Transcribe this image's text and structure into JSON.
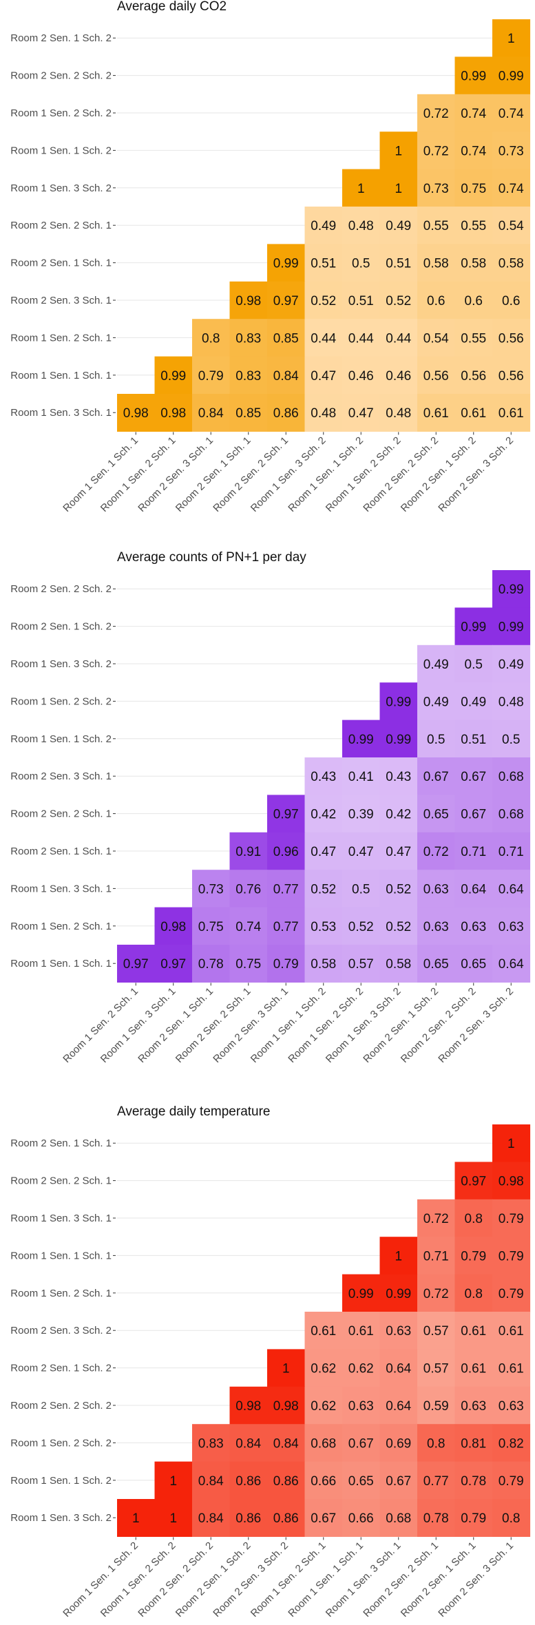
{
  "chart_data": [
    {
      "type": "heatmap",
      "title": "Average daily CO2",
      "color": "#f5a100",
      "color_light": "#ffdcaa",
      "y_labels": [
        "Room 2 Sen. 1 Sch. 2",
        "Room 2 Sen. 2 Sch. 2",
        "Room 1 Sen. 2 Sch. 2",
        "Room 1 Sen. 1 Sch. 2",
        "Room 1 Sen. 3 Sch. 2",
        "Room 2 Sen. 2 Sch. 1",
        "Room 2 Sen. 1 Sch. 1",
        "Room 2 Sen. 3 Sch. 1",
        "Room 1 Sen. 2 Sch. 1",
        "Room 1 Sen. 1 Sch. 1",
        "Room 1 Sen. 3 Sch. 1"
      ],
      "x_labels": [
        "Room 1 Sen. 1 Sch. 1",
        "Room 1 Sen. 2 Sch. 1",
        "Room 2 Sen. 3 Sch. 1",
        "Room 2 Sen. 1 Sch. 1",
        "Room 2 Sen. 2 Sch. 1",
        "Room 1 Sen. 3 Sch. 2",
        "Room 1 Sen. 1 Sch. 2",
        "Room 1 Sen. 2 Sch. 2",
        "Room 2 Sen. 2 Sch. 2",
        "Room 2 Sen. 1 Sch. 2",
        "Room 2 Sen. 3 Sch. 2"
      ],
      "rows": [
        [
          "1"
        ],
        [
          "0.99",
          "0.99"
        ],
        [
          "0.72",
          "0.74",
          "0.74"
        ],
        [
          "1",
          "0.72",
          "0.74",
          "0.73"
        ],
        [
          "1",
          "1",
          "0.73",
          "0.75",
          "0.74"
        ],
        [
          "0.49",
          "0.48",
          "0.49",
          "0.55",
          "0.55",
          "0.54"
        ],
        [
          "0.99",
          "0.51",
          "0.5",
          "0.51",
          "0.58",
          "0.58",
          "0.58"
        ],
        [
          "0.98",
          "0.97",
          "0.52",
          "0.51",
          "0.52",
          "0.6",
          "0.6",
          "0.6"
        ],
        [
          "0.8",
          "0.83",
          "0.85",
          "0.44",
          "0.44",
          "0.44",
          "0.54",
          "0.55",
          "0.56"
        ],
        [
          "0.99",
          "0.79",
          "0.83",
          "0.84",
          "0.47",
          "0.46",
          "0.46",
          "0.56",
          "0.56",
          "0.56"
        ],
        [
          "0.98",
          "0.98",
          "0.84",
          "0.85",
          "0.86",
          "0.48",
          "0.47",
          "0.48",
          "0.61",
          "0.61",
          "0.61"
        ]
      ]
    },
    {
      "type": "heatmap",
      "title": "Average counts of PN+1 per day",
      "color": "#8a2be2",
      "color_light": "#dcbdf7",
      "y_labels": [
        "Room 2 Sen. 2 Sch. 2",
        "Room 2 Sen. 1 Sch. 2",
        "Room 1 Sen. 3 Sch. 2",
        "Room 1 Sen. 2 Sch. 2",
        "Room 1 Sen. 1 Sch. 2",
        "Room 2 Sen. 3 Sch. 1",
        "Room 2 Sen. 2 Sch. 1",
        "Room 2 Sen. 1 Sch. 1",
        "Room 1 Sen. 3 Sch. 1",
        "Room 1 Sen. 2 Sch. 1",
        "Room 1 Sen. 1 Sch. 1"
      ],
      "x_labels": [
        "Room 1 Sen. 2 Sch. 1",
        "Room 1 Sen. 3 Sch. 1",
        "Room 2 Sen. 1 Sch. 1",
        "Room 2 Sen. 2 Sch. 1",
        "Room 2 Sen. 3 Sch. 1",
        "Room 1 Sen. 1 Sch. 2",
        "Room 1 Sen. 2 Sch. 2",
        "Room 1 Sen. 3 Sch. 2",
        "Room 2 Sen. 1 Sch. 2",
        "Room 2 Sen. 2 Sch. 2",
        "Room 2 Sen. 3 Sch. 2"
      ],
      "rows": [
        [
          "0.99"
        ],
        [
          "0.99",
          "0.99"
        ],
        [
          "0.49",
          "0.5",
          "0.49"
        ],
        [
          "0.99",
          "0.49",
          "0.49",
          "0.48"
        ],
        [
          "0.99",
          "0.99",
          "0.5",
          "0.51",
          "0.5"
        ],
        [
          "0.43",
          "0.41",
          "0.43",
          "0.67",
          "0.67",
          "0.68"
        ],
        [
          "0.97",
          "0.42",
          "0.39",
          "0.42",
          "0.65",
          "0.67",
          "0.68"
        ],
        [
          "0.91",
          "0.96",
          "0.47",
          "0.47",
          "0.47",
          "0.72",
          "0.71",
          "0.71"
        ],
        [
          "0.73",
          "0.76",
          "0.77",
          "0.52",
          "0.5",
          "0.52",
          "0.63",
          "0.64",
          "0.64"
        ],
        [
          "0.98",
          "0.75",
          "0.74",
          "0.77",
          "0.53",
          "0.52",
          "0.52",
          "0.63",
          "0.63",
          "0.63"
        ],
        [
          "0.97",
          "0.97",
          "0.78",
          "0.75",
          "0.79",
          "0.58",
          "0.57",
          "0.58",
          "0.65",
          "0.65",
          "0.64"
        ]
      ]
    },
    {
      "type": "heatmap",
      "title": "Average daily temperature",
      "color": "#f5230a",
      "color_light": "#fbb7a6",
      "y_labels": [
        "Room 2 Sen. 1 Sch. 1",
        "Room 2 Sen. 2 Sch. 1",
        "Room 1 Sen. 3 Sch. 1",
        "Room 1 Sen. 1 Sch. 1",
        "Room 1 Sen. 2 Sch. 1",
        "Room 2 Sen. 3 Sch. 2",
        "Room 2 Sen. 1 Sch. 2",
        "Room 2 Sen. 2 Sch. 2",
        "Room 1 Sen. 2 Sch. 2",
        "Room 1 Sen. 1 Sch. 2",
        "Room 1 Sen. 3 Sch. 2"
      ],
      "x_labels": [
        "Room 1 Sen. 1 Sch. 2",
        "Room 1 Sen. 2 Sch. 2",
        "Room 2 Sen. 2 Sch. 2",
        "Room 2 Sen. 1 Sch. 2",
        "Room 2 Sen. 3 Sch. 2",
        "Room 1 Sen. 2 Sch. 1",
        "Room 1 Sen. 1 Sch. 1",
        "Room 1 Sen. 3 Sch. 1",
        "Room 2 Sen. 2 Sch. 1",
        "Room 2 Sen. 1 Sch. 1",
        "Room 2 Sen. 3 Sch. 1"
      ],
      "rows": [
        [
          "1"
        ],
        [
          "0.97",
          "0.98"
        ],
        [
          "0.72",
          "0.8",
          "0.79"
        ],
        [
          "1",
          "0.71",
          "0.79",
          "0.79"
        ],
        [
          "0.99",
          "0.99",
          "0.72",
          "0.8",
          "0.79"
        ],
        [
          "0.61",
          "0.61",
          "0.63",
          "0.57",
          "0.61",
          "0.61"
        ],
        [
          "1",
          "0.62",
          "0.62",
          "0.64",
          "0.57",
          "0.61",
          "0.61"
        ],
        [
          "0.98",
          "0.98",
          "0.62",
          "0.63",
          "0.64",
          "0.59",
          "0.63",
          "0.63"
        ],
        [
          "0.83",
          "0.84",
          "0.84",
          "0.68",
          "0.67",
          "0.69",
          "0.8",
          "0.81",
          "0.82"
        ],
        [
          "1",
          "0.84",
          "0.86",
          "0.86",
          "0.66",
          "0.65",
          "0.67",
          "0.77",
          "0.78",
          "0.79"
        ],
        [
          "1",
          "1",
          "0.84",
          "0.86",
          "0.86",
          "0.67",
          "0.66",
          "0.68",
          "0.78",
          "0.79",
          "0.8"
        ]
      ]
    }
  ]
}
